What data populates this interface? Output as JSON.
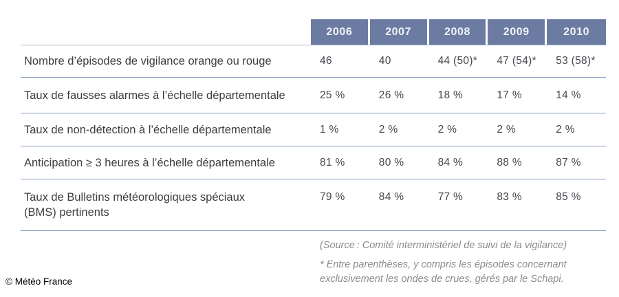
{
  "chart_data": {
    "type": "table",
    "title": "",
    "columns": [
      "2006",
      "2007",
      "2008",
      "2009",
      "2010"
    ],
    "rows": [
      {
        "label": "Nombre d’épisodes de vigilance orange ou rouge",
        "values": [
          "46",
          "40",
          "44 (50)*",
          "47 (54)*",
          "53 (58)*"
        ]
      },
      {
        "label": "Taux de fausses alarmes à l’échelle départementale",
        "values": [
          "25 %",
          "26 %",
          "18 %",
          "17 %",
          "14 %"
        ]
      },
      {
        "label": "Taux de non-détection à l’échelle départementale",
        "values": [
          "1 %",
          "2 %",
          "2 %",
          "2 %",
          "2 %"
        ]
      },
      {
        "label": "Anticipation ≥ 3 heures à l’échelle départementale",
        "values": [
          "81 %",
          "80 %",
          "84 %",
          "88 %",
          "87 %"
        ]
      },
      {
        "label": "Taux de Bulletins météorologiques spéciaux\n(BMS) pertinents",
        "values": [
          "79 %",
          "84 %",
          "77 %",
          "83 %",
          "85 %"
        ]
      }
    ],
    "legend_position": "none",
    "grid": "horizontal-rules"
  },
  "notes": {
    "source": "(Source : Comité interministériel de suivi de la vigilance)",
    "asterisk": "* Entre parenthèses, y compris les épisodes concernant\nexclusivement les ondes de crues, gérés par le Schapi."
  },
  "footer": {
    "copyright": "© Météo France"
  },
  "colors": {
    "header_bg": "#6b7ba1",
    "header_text": "#f2f4f8",
    "row_line": "#899cc2",
    "header_line": "#a9b4c9",
    "label_text": "#3d3d3f",
    "value_text": "#45454d",
    "note_text": "#8b8b8d",
    "background": "#ffffff"
  }
}
